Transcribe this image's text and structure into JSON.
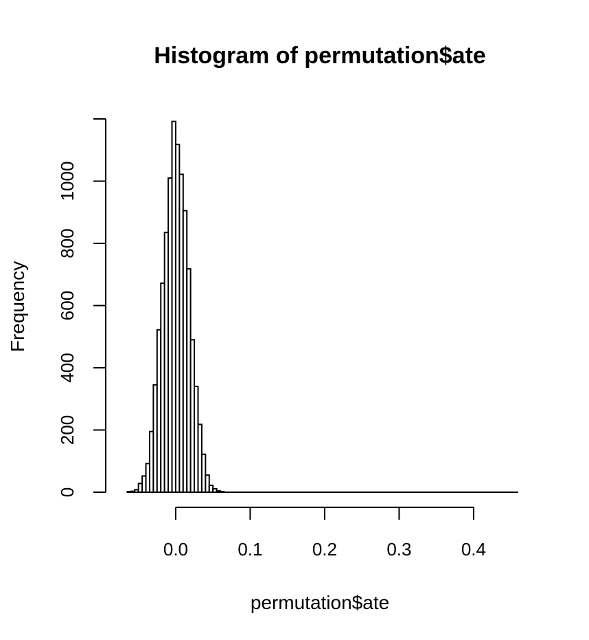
{
  "chart_data": {
    "type": "bar",
    "title": "Histogram of permutation$ate",
    "xlabel": "permutation$ate",
    "ylabel": "Frequency",
    "bin_width": 0.005,
    "bins": [
      {
        "x0": -0.065,
        "x1": -0.06,
        "count": 2
      },
      {
        "x0": -0.06,
        "x1": -0.055,
        "count": 3
      },
      {
        "x0": -0.055,
        "x1": -0.05,
        "count": 8
      },
      {
        "x0": -0.05,
        "x1": -0.045,
        "count": 28
      },
      {
        "x0": -0.045,
        "x1": -0.04,
        "count": 52
      },
      {
        "x0": -0.04,
        "x1": -0.035,
        "count": 92
      },
      {
        "x0": -0.035,
        "x1": -0.03,
        "count": 195
      },
      {
        "x0": -0.03,
        "x1": -0.025,
        "count": 345
      },
      {
        "x0": -0.025,
        "x1": -0.02,
        "count": 522
      },
      {
        "x0": -0.02,
        "x1": -0.015,
        "count": 672
      },
      {
        "x0": -0.015,
        "x1": -0.01,
        "count": 835
      },
      {
        "x0": -0.01,
        "x1": -0.005,
        "count": 1010
      },
      {
        "x0": -0.005,
        "x1": 0.0,
        "count": 1192
      },
      {
        "x0": 0.0,
        "x1": 0.005,
        "count": 1118
      },
      {
        "x0": 0.005,
        "x1": 0.01,
        "count": 1022
      },
      {
        "x0": 0.01,
        "x1": 0.015,
        "count": 905
      },
      {
        "x0": 0.015,
        "x1": 0.02,
        "count": 718
      },
      {
        "x0": 0.02,
        "x1": 0.025,
        "count": 490
      },
      {
        "x0": 0.025,
        "x1": 0.03,
        "count": 340
      },
      {
        "x0": 0.03,
        "x1": 0.035,
        "count": 218
      },
      {
        "x0": 0.035,
        "x1": 0.04,
        "count": 122
      },
      {
        "x0": 0.04,
        "x1": 0.045,
        "count": 55
      },
      {
        "x0": 0.045,
        "x1": 0.05,
        "count": 22
      },
      {
        "x0": 0.05,
        "x1": 0.055,
        "count": 11
      },
      {
        "x0": 0.055,
        "x1": 0.06,
        "count": 4
      },
      {
        "x0": 0.06,
        "x1": 0.065,
        "count": 2
      }
    ],
    "x_range": [
      -0.07,
      0.46
    ],
    "xlim_axis": [
      0.0,
      0.4
    ],
    "x_ticks": [
      0.0,
      0.1,
      0.2,
      0.3,
      0.4
    ],
    "x_tick_labels": [
      "0.0",
      "0.1",
      "0.2",
      "0.3",
      "0.4"
    ],
    "ylim": [
      0,
      1200
    ],
    "y_ticks": [
      0,
      200,
      400,
      600,
      800,
      1000
    ],
    "y_tick_labels": [
      "0",
      "200",
      "400",
      "600",
      "800",
      "1000"
    ],
    "grid": false,
    "legend": "none"
  }
}
